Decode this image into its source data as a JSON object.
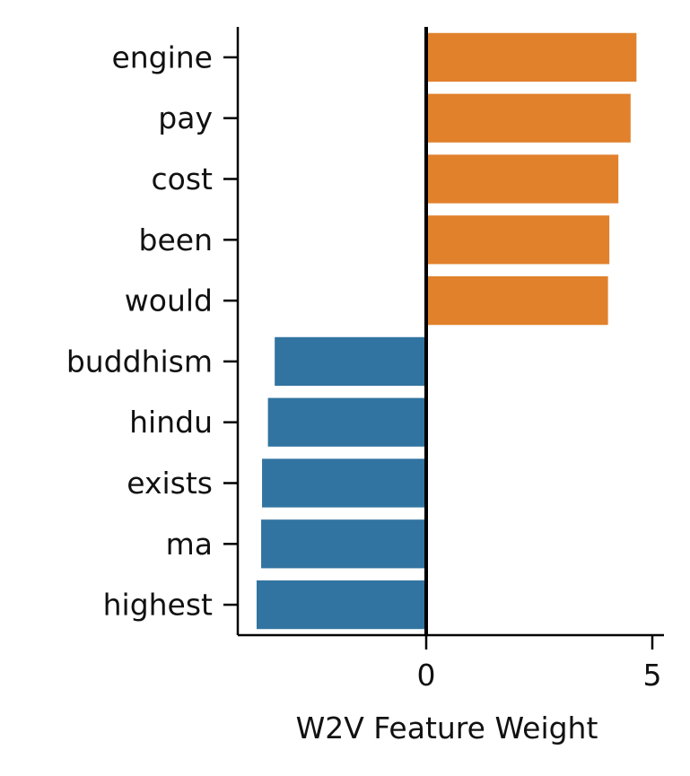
{
  "chart_data": {
    "type": "bar",
    "orientation": "horizontal",
    "categories": [
      "engine",
      "pay",
      "cost",
      "been",
      "would",
      "buddhism",
      "hindu",
      "exists",
      "ma",
      "highest"
    ],
    "values": [
      4.65,
      4.52,
      4.25,
      4.05,
      4.02,
      -3.35,
      -3.5,
      -3.63,
      -3.65,
      -3.75
    ],
    "xlabel": "W2V Feature Weight",
    "ylabel": "",
    "xlim": [
      -4.2,
      5.05
    ],
    "xticks": [
      "0",
      "5"
    ],
    "grid": false,
    "legend": "none",
    "colors": {
      "positive": "#e1812c",
      "negative": "#3274a1",
      "zero_line": "#000000"
    }
  }
}
